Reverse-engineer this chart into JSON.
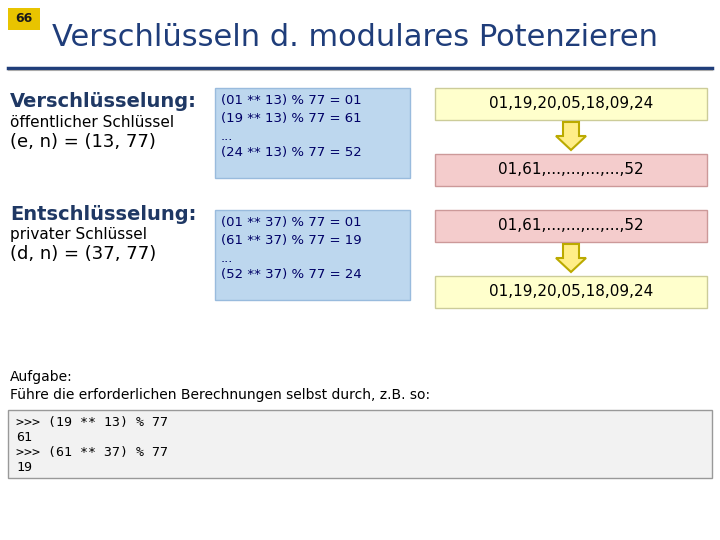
{
  "title": "Verschlüsseln d. modulares Potenzieren",
  "slide_number": "66",
  "bg_color": "#ffffff",
  "title_color": "#1F3D7A",
  "slide_num_bg": "#E8C400",
  "section1_label": "Verschlüsselung:",
  "section1_sub1": "öffentlicher Schlüssel",
  "section1_sub2": "(e, n) = (13, 77)",
  "section2_label": "Entschlüsselung:",
  "section2_sub1": "privater Schlüssel",
  "section2_sub2": "(d, n) = (37, 77)",
  "enc_line1": "(01 ** 13) % 77 = 01",
  "enc_line2": "(19 ** 13) % 77 = 61",
  "enc_line3": "...",
  "enc_line4": "(24 ** 13) % 77 = 52",
  "dec_line1": "(01 ** 37) % 77 = 01",
  "dec_line2": "(61 ** 37) % 77 = 19",
  "dec_line3": "...",
  "dec_line4": "(52 ** 37) % 77 = 24",
  "yellow_top": "01,19,20,05,18,09,24",
  "pink_enc": "01,61,...,...,...,...,52",
  "pink_dec": "01,61,...,...,...,...,52",
  "yellow_bot": "01,19,20,05,18,09,24",
  "blue_box_color": "#BDD7EE",
  "yellow_box_color": "#FFFFCC",
  "pink_box_color": "#F4CCCC",
  "arrow_fill": "#FFEE88",
  "arrow_edge": "#BBAA00",
  "aufgabe_text": "Aufgabe:",
  "aufgabe_sub": "Führe die erforderlichen Berechnungen selbst durch, z.B. so:",
  "code_line1": ">>> (19 ** 13) % 77",
  "code_line2": "61",
  "code_line3": ">>> (61 ** 37) % 77",
  "code_line4": "19",
  "code_bg": "#F2F2F2",
  "header_line_color": "#1F3D7A",
  "label_color": "#1F3864",
  "blue_text_color": "#000066"
}
